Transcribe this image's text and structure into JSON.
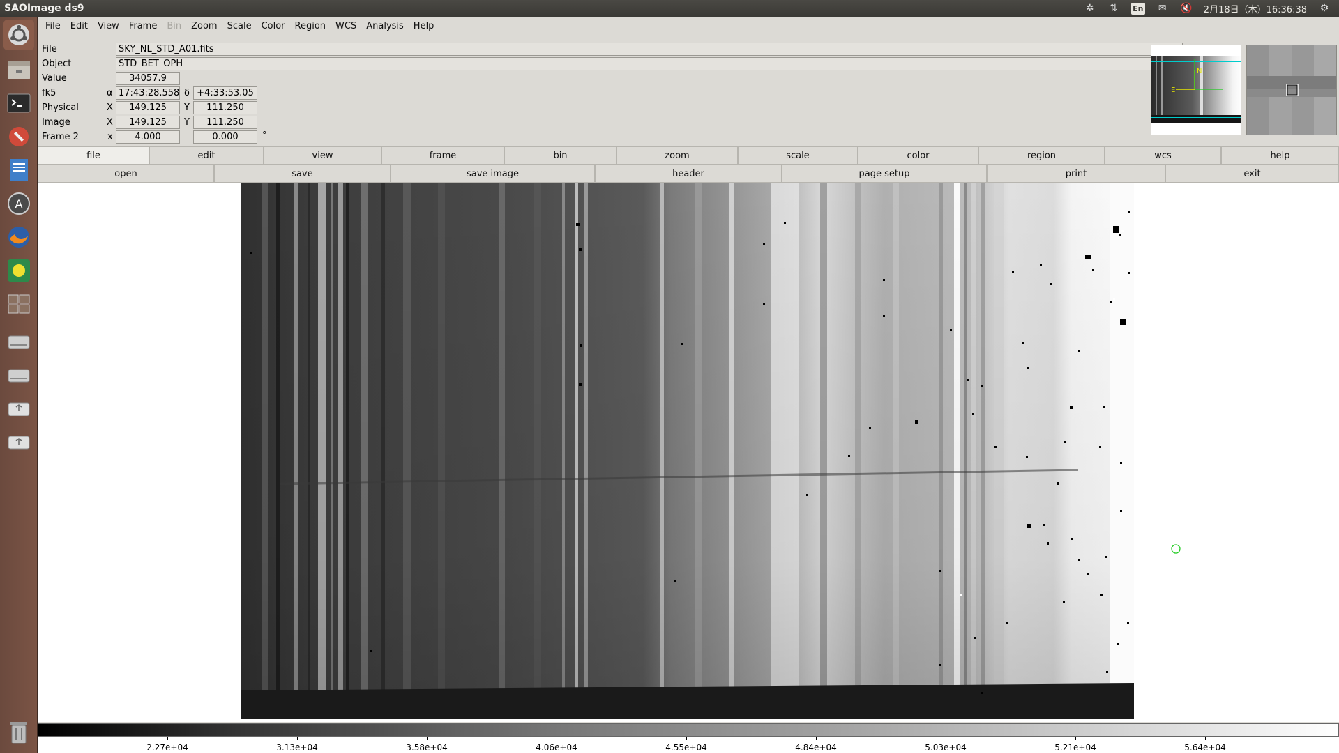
{
  "window_title": "SAOImage ds9",
  "topbar": {
    "lang": "En",
    "datetime": "2月18日（木）16:36:38"
  },
  "menu": [
    {
      "label": "File"
    },
    {
      "label": "Edit"
    },
    {
      "label": "View"
    },
    {
      "label": "Frame"
    },
    {
      "label": "Bin",
      "disabled": true
    },
    {
      "label": "Zoom"
    },
    {
      "label": "Scale"
    },
    {
      "label": "Color"
    },
    {
      "label": "Region"
    },
    {
      "label": "WCS"
    },
    {
      "label": "Analysis"
    },
    {
      "label": "Help"
    }
  ],
  "info": {
    "file_label": "File",
    "file_value": "SKY_NL_STD_A01.fits",
    "object_label": "Object",
    "object_value": "STD_BET_OPH",
    "value_label": "Value",
    "value_value": "34057.9",
    "wcs_label": "fk5",
    "alpha_sym": "α",
    "alpha_value": "17:43:28.558",
    "delta_sym": "δ",
    "delta_value": "+4:33:53.05",
    "physical_label": "Physical",
    "physical_x_sym": "X",
    "physical_x": "149.125",
    "physical_y_sym": "Y",
    "physical_y": "111.250",
    "image_label": "Image",
    "image_x_sym": "X",
    "image_x": "149.125",
    "image_y_sym": "Y",
    "image_y": "111.250",
    "frame_label": "Frame 2",
    "frame_x_sym": "x",
    "frame_zoom": "4.000",
    "frame_angle": "0.000",
    "deg_sym": "°"
  },
  "panner": {
    "north": "N",
    "east": "E"
  },
  "buttons_top": [
    "file",
    "edit",
    "view",
    "frame",
    "bin",
    "zoom",
    "scale",
    "color",
    "region",
    "wcs",
    "help"
  ],
  "buttons_bottom": [
    "open",
    "save",
    "save image",
    "header",
    "page setup",
    "print",
    "exit"
  ],
  "colorbar_ticks": [
    "2.27e+04",
    "3.13e+04",
    "3.58e+04",
    "4.06e+04",
    "4.55e+04",
    "4.84e+04",
    "5.03e+04",
    "5.21e+04",
    "5.64e+04"
  ],
  "colors": {
    "region_circle": "#22cc22",
    "compass": "#e6e600",
    "panner_box": "#00cccc"
  }
}
